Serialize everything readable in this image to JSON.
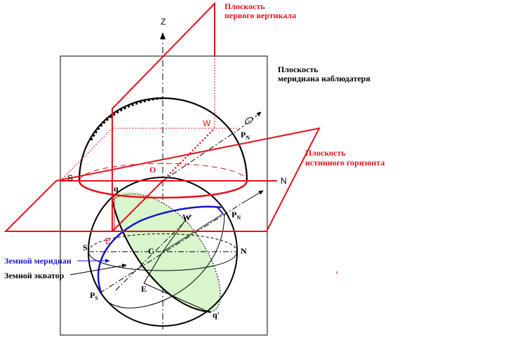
{
  "labels": {
    "prime_vertical_plane_1": "Плоскость",
    "prime_vertical_plane_2": "первого вертикала",
    "meridian_plane_1": "Плоскость",
    "meridian_plane_2": "меридиана наблюдатеря",
    "horizon_plane_1": "Плоскость",
    "horizon_plane_2": "истинного горизонта",
    "earth_meridian": "Земной меридиан",
    "earth_equator": "Земной экватор"
  },
  "points": {
    "Z": "Z",
    "W_upper": "W",
    "PN_upper": "P",
    "PN_upper_sub": "N",
    "S_upper": "S",
    "O": "O",
    "N_upper": "N",
    "q": "q",
    "W_lower": "W",
    "PN_lower": "P",
    "PN_lower_sub": "N",
    "E_red": "E",
    "S_lower": "S",
    "C": "C",
    "N_lower": "N",
    "E_lower": "E",
    "PS": "P",
    "PS_sub": "S",
    "q_prime": "q'"
  },
  "colors": {
    "red": "#e8101a",
    "blue": "#1515d0",
    "green_fill": "#d8f5cc",
    "black": "#000000"
  }
}
